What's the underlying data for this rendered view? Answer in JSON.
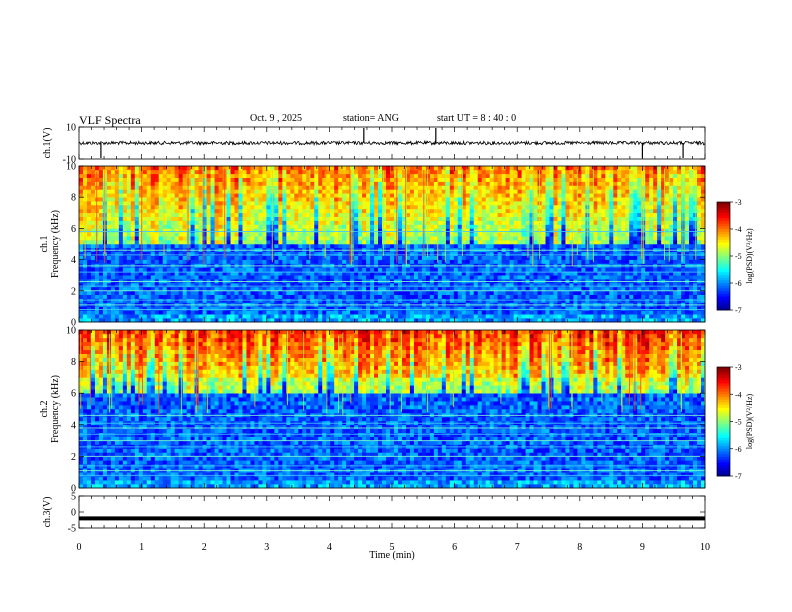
{
  "header": {
    "title": "VLF Spectra",
    "date": "Oct. 9 , 2025",
    "station": "station= ANG",
    "start": "start UT = 8 : 40 : 0"
  },
  "chart_data": [
    {
      "type": "line",
      "name": "ch1-waveform",
      "ylabel": "ch.1(V)",
      "ylim": [
        -10,
        10
      ],
      "yticks": [
        "10",
        "-10"
      ],
      "baseline": 0,
      "spikes_min": [
        0.35,
        4.55,
        5.7,
        9.0,
        9.65
      ],
      "xlim": [
        0,
        10
      ]
    },
    {
      "type": "heatmap",
      "name": "ch1-spectrogram",
      "ylabel": "ch.1 Frequency (kHz)",
      "ylim": [
        0,
        10
      ],
      "yticks": [
        "0",
        "2",
        "4",
        "6",
        "8",
        "10"
      ],
      "xlim": [
        0,
        10
      ],
      "colorbar": {
        "label": "log(PSD)(V²/Hz)",
        "ticks": [
          "-3",
          "-4",
          "-5",
          "-6",
          "-7"
        ],
        "range": [
          -7,
          -3
        ]
      },
      "tone_lines_khz": [
        0.8,
        1.1,
        1.4,
        2.0,
        2.3,
        2.6,
        3.2,
        3.6,
        4.3,
        4.6,
        5.8
      ],
      "noise_floor_khz": 5.0
    },
    {
      "type": "heatmap",
      "name": "ch2-spectrogram",
      "ylabel": "ch.2 Frequency (kHz)",
      "ylim": [
        0,
        10
      ],
      "yticks": [
        "0",
        "2",
        "4",
        "6",
        "8",
        "10"
      ],
      "xlim": [
        0,
        10
      ],
      "colorbar": {
        "label": "log(PSD)(V²/Hz)",
        "ticks": [
          "-3",
          "-4",
          "-5",
          "-6",
          "-7"
        ],
        "range": [
          -7,
          -3
        ]
      },
      "tone_lines_khz": [
        0.8,
        1.1,
        1.4,
        2.0,
        2.6,
        3.0,
        3.4,
        3.8,
        4.1,
        4.6
      ],
      "noise_floor_khz": 6.0
    },
    {
      "type": "line",
      "name": "ch3-waveform",
      "ylabel": "ch.3(V)",
      "ylim": [
        -5,
        5
      ],
      "yticks": [
        "5",
        "0",
        "-5"
      ],
      "baseline": -2,
      "xlim": [
        0,
        10
      ]
    }
  ],
  "xaxis": {
    "label": "Time (min)",
    "ticks": [
      "0",
      "1",
      "2",
      "3",
      "4",
      "5",
      "6",
      "7",
      "8",
      "9",
      "10"
    ]
  },
  "colors": {
    "waveform": "#000000",
    "spec_low": "#00005a",
    "spec_high": "#ff0000"
  }
}
